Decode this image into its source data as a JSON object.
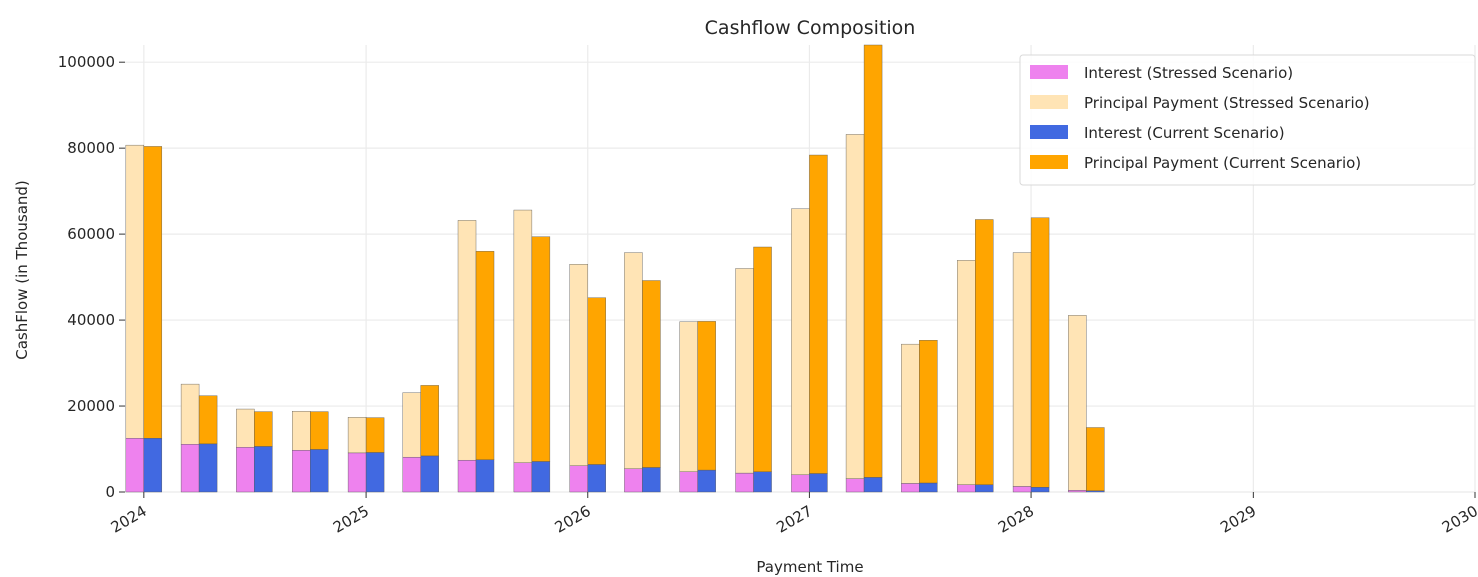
{
  "chart_data": {
    "type": "bar",
    "title": "Cashflow Composition",
    "xlabel": "Payment Time",
    "ylabel": "CashFlow (in Thousand)",
    "stacked": true,
    "grid": true,
    "legend_position": "top-right",
    "ylim": [
      0,
      104000
    ],
    "xlim": [
      "2023-12-01",
      "2030-01-01"
    ],
    "x_ticks": [
      "2024",
      "2025",
      "2026",
      "2027",
      "2028",
      "2029",
      "2030"
    ],
    "y_ticks": [
      "0",
      "20000",
      "40000",
      "60000",
      "80000",
      "100000"
    ],
    "dates": [
      "2024-01-01",
      "2024-04-01",
      "2024-07-01",
      "2024-10-01",
      "2025-01-01",
      "2025-04-01",
      "2025-07-01",
      "2025-10-01",
      "2026-01-01",
      "2026-04-01",
      "2026-07-01",
      "2026-10-01",
      "2027-01-01",
      "2027-04-01",
      "2027-07-01",
      "2027-10-01",
      "2028-01-01",
      "2028-04-01"
    ],
    "groups": [
      {
        "scenario": "Stressed Scenario",
        "interest": {
          "name": "Interest (Stressed Scenario)",
          "color": "#ee82ee",
          "values": [
            12500,
            11100,
            10400,
            9700,
            9100,
            8100,
            7400,
            6800,
            6100,
            5400,
            4700,
            4400,
            4000,
            3100,
            2000,
            1700,
            1300,
            400
          ]
        },
        "principal": {
          "name": "Principal Payment (Stressed Scenario)",
          "color": "#ffe4b5",
          "values": [
            68200,
            14000,
            8900,
            9100,
            8300,
            15000,
            55800,
            58800,
            46900,
            50300,
            34900,
            47600,
            61900,
            80100,
            32400,
            52200,
            54400,
            40700
          ]
        }
      },
      {
        "scenario": "Current Scenario",
        "interest": {
          "name": "Interest (Current Scenario)",
          "color": "#4169e1",
          "values": [
            12500,
            11200,
            10600,
            9900,
            9200,
            8400,
            7500,
            7100,
            6400,
            5700,
            5100,
            4700,
            4300,
            3400,
            2100,
            1700,
            1100,
            300
          ]
        },
        "principal": {
          "name": "Principal Payment (Current Scenario)",
          "color": "#ffa500",
          "values": [
            67900,
            11200,
            8100,
            8800,
            8100,
            16400,
            48500,
            52300,
            38800,
            43500,
            34600,
            52300,
            74100,
            100600,
            33200,
            61700,
            62700,
            14700
          ]
        }
      }
    ],
    "legend": [
      {
        "label": "Interest (Stressed Scenario)",
        "color": "#ee82ee"
      },
      {
        "label": "Principal Payment (Stressed Scenario)",
        "color": "#ffe4b5"
      },
      {
        "label": "Interest (Current Scenario)",
        "color": "#4169e1"
      },
      {
        "label": "Principal Payment (Current Scenario)",
        "color": "#ffa500"
      }
    ]
  }
}
